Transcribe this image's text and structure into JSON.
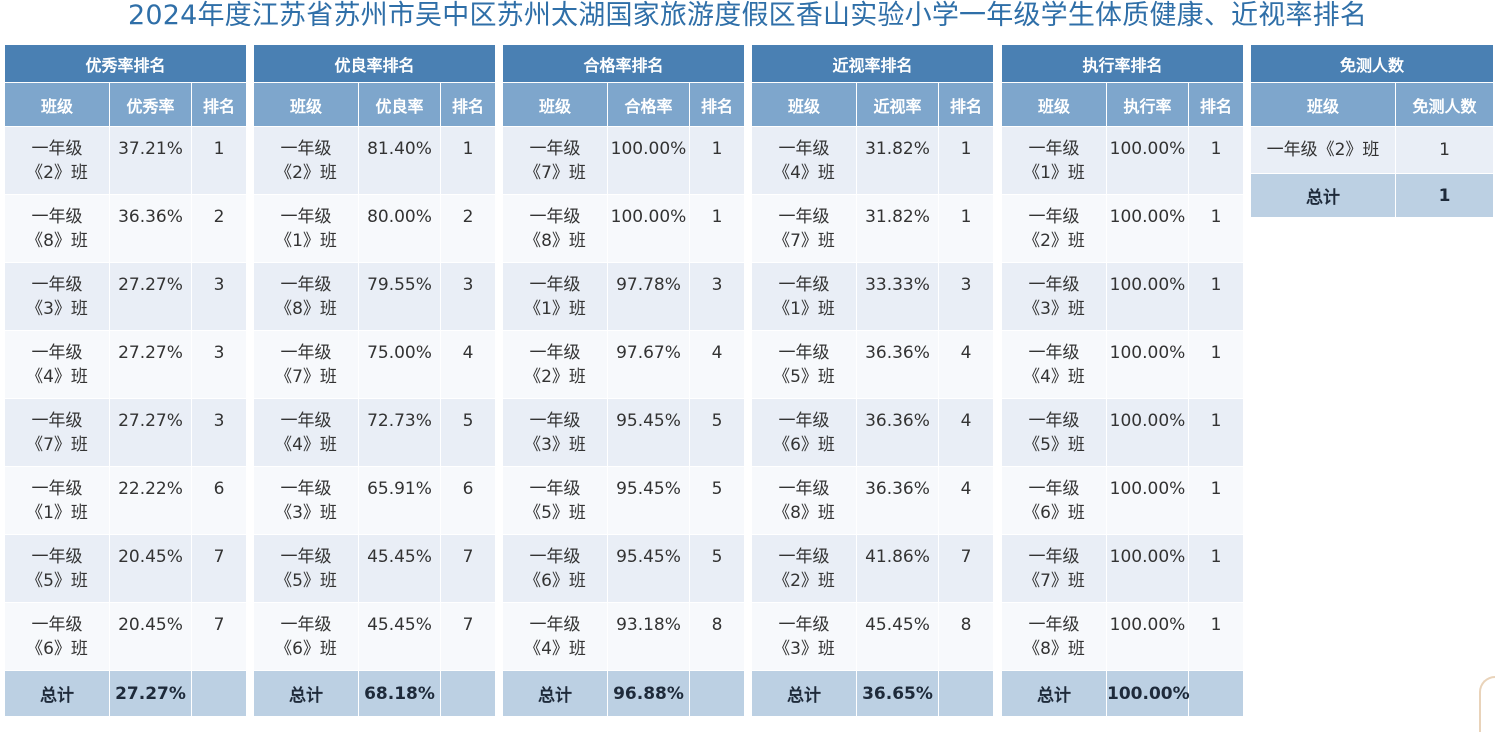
{
  "title": "2024年度江苏省苏州市吴中区苏州太湖国家旅游度假区香山实验小学一年级学生体质健康、近视率排名",
  "panels": [
    {
      "header": "优秀率排名",
      "columns": [
        "班级",
        "优秀率",
        "排名"
      ],
      "rows": [
        {
          "grade": "一年级",
          "cls": "《2》班",
          "value": "37.21%",
          "rank": "1"
        },
        {
          "grade": "一年级",
          "cls": "《8》班",
          "value": "36.36%",
          "rank": "2"
        },
        {
          "grade": "一年级",
          "cls": "《3》班",
          "value": "27.27%",
          "rank": "3"
        },
        {
          "grade": "一年级",
          "cls": "《4》班",
          "value": "27.27%",
          "rank": "3"
        },
        {
          "grade": "一年级",
          "cls": "《7》班",
          "value": "27.27%",
          "rank": "3"
        },
        {
          "grade": "一年级",
          "cls": "《1》班",
          "value": "22.22%",
          "rank": "6"
        },
        {
          "grade": "一年级",
          "cls": "《5》班",
          "value": "20.45%",
          "rank": "7"
        },
        {
          "grade": "一年级",
          "cls": "《6》班",
          "value": "20.45%",
          "rank": "7"
        }
      ],
      "total_label": "总计",
      "total_value": "27.27%"
    },
    {
      "header": "优良率排名",
      "columns": [
        "班级",
        "优良率",
        "排名"
      ],
      "rows": [
        {
          "grade": "一年级",
          "cls": "《2》班",
          "value": "81.40%",
          "rank": "1"
        },
        {
          "grade": "一年级",
          "cls": "《1》班",
          "value": "80.00%",
          "rank": "2"
        },
        {
          "grade": "一年级",
          "cls": "《8》班",
          "value": "79.55%",
          "rank": "3"
        },
        {
          "grade": "一年级",
          "cls": "《7》班",
          "value": "75.00%",
          "rank": "4"
        },
        {
          "grade": "一年级",
          "cls": "《4》班",
          "value": "72.73%",
          "rank": "5"
        },
        {
          "grade": "一年级",
          "cls": "《3》班",
          "value": "65.91%",
          "rank": "6"
        },
        {
          "grade": "一年级",
          "cls": "《5》班",
          "value": "45.45%",
          "rank": "7"
        },
        {
          "grade": "一年级",
          "cls": "《6》班",
          "value": "45.45%",
          "rank": "7"
        }
      ],
      "total_label": "总计",
      "total_value": "68.18%"
    },
    {
      "header": "合格率排名",
      "columns": [
        "班级",
        "合格率",
        "排名"
      ],
      "rows": [
        {
          "grade": "一年级",
          "cls": "《7》班",
          "value": "100.00%",
          "rank": "1"
        },
        {
          "grade": "一年级",
          "cls": "《8》班",
          "value": "100.00%",
          "rank": "1"
        },
        {
          "grade": "一年级",
          "cls": "《1》班",
          "value": "97.78%",
          "rank": "3"
        },
        {
          "grade": "一年级",
          "cls": "《2》班",
          "value": "97.67%",
          "rank": "4"
        },
        {
          "grade": "一年级",
          "cls": "《3》班",
          "value": "95.45%",
          "rank": "5"
        },
        {
          "grade": "一年级",
          "cls": "《5》班",
          "value": "95.45%",
          "rank": "5"
        },
        {
          "grade": "一年级",
          "cls": "《6》班",
          "value": "95.45%",
          "rank": "5"
        },
        {
          "grade": "一年级",
          "cls": "《4》班",
          "value": "93.18%",
          "rank": "8"
        }
      ],
      "total_label": "总计",
      "total_value": "96.88%"
    },
    {
      "header": "近视率排名",
      "columns": [
        "班级",
        "近视率",
        "排名"
      ],
      "rows": [
        {
          "grade": "一年级",
          "cls": "《4》班",
          "value": "31.82%",
          "rank": "1"
        },
        {
          "grade": "一年级",
          "cls": "《7》班",
          "value": "31.82%",
          "rank": "1"
        },
        {
          "grade": "一年级",
          "cls": "《1》班",
          "value": "33.33%",
          "rank": "3"
        },
        {
          "grade": "一年级",
          "cls": "《5》班",
          "value": "36.36%",
          "rank": "4"
        },
        {
          "grade": "一年级",
          "cls": "《6》班",
          "value": "36.36%",
          "rank": "4"
        },
        {
          "grade": "一年级",
          "cls": "《8》班",
          "value": "36.36%",
          "rank": "4"
        },
        {
          "grade": "一年级",
          "cls": "《2》班",
          "value": "41.86%",
          "rank": "7"
        },
        {
          "grade": "一年级",
          "cls": "《3》班",
          "value": "45.45%",
          "rank": "8"
        }
      ],
      "total_label": "总计",
      "total_value": "36.65%"
    },
    {
      "header": "执行率排名",
      "columns": [
        "班级",
        "执行率",
        "排名"
      ],
      "rows": [
        {
          "grade": "一年级",
          "cls": "《1》班",
          "value": "100.00%",
          "rank": "1"
        },
        {
          "grade": "一年级",
          "cls": "《2》班",
          "value": "100.00%",
          "rank": "1"
        },
        {
          "grade": "一年级",
          "cls": "《3》班",
          "value": "100.00%",
          "rank": "1"
        },
        {
          "grade": "一年级",
          "cls": "《4》班",
          "value": "100.00%",
          "rank": "1"
        },
        {
          "grade": "一年级",
          "cls": "《5》班",
          "value": "100.00%",
          "rank": "1"
        },
        {
          "grade": "一年级",
          "cls": "《6》班",
          "value": "100.00%",
          "rank": "1"
        },
        {
          "grade": "一年级",
          "cls": "《7》班",
          "value": "100.00%",
          "rank": "1"
        },
        {
          "grade": "一年级",
          "cls": "《8》班",
          "value": "100.00%",
          "rank": "1"
        }
      ],
      "total_label": "总计",
      "total_value": "100.00%"
    }
  ],
  "exempt": {
    "header": "免测人数",
    "columns": [
      "班级",
      "免测人数"
    ],
    "rows": [
      {
        "cls": "一年级《2》班",
        "count": "1"
      }
    ],
    "total_label": "总计",
    "total_value": "1"
  },
  "colors": {
    "title": "#2f6fa8",
    "header_primary": "#4a80b3",
    "header_secondary": "#7ea6cc",
    "row_odd": "#e9eef6",
    "row_even": "#f7f9fc",
    "total_row": "#bcd0e3"
  }
}
